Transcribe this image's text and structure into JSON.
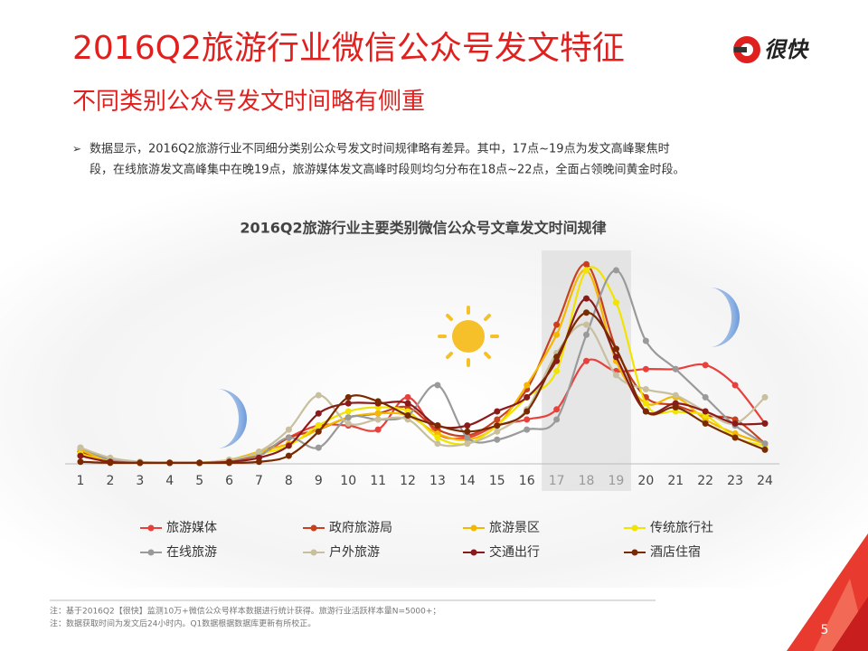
{
  "header": {
    "title": "2016Q2旅游行业微信公众号发文特征",
    "subtitle": "不同类别公众号发文时间略有侧重",
    "logo": "很快"
  },
  "summary": {
    "lines": [
      "数据显示，2016Q2旅游行业不同细分类别公众号发文时间规律略有差异。其中，17点~19点为发文高峰聚焦时",
      "段，在线旅游发文高峰集中在晚19点，旅游媒体发文高峰时段则均匀分布在18点~22点，全面占领晚间黄金时段。"
    ]
  },
  "chart_data": {
    "type": "line",
    "title": "2016Q2旅游行业主要类别微信公众号文章发文时间规律",
    "categories": [
      "1",
      "2",
      "3",
      "4",
      "5",
      "6",
      "7",
      "8",
      "9",
      "10",
      "11",
      "12",
      "13",
      "14",
      "15",
      "16",
      "17",
      "18",
      "19",
      "20",
      "21",
      "22",
      "23",
      "24"
    ],
    "ylim": [
      0,
      100
    ],
    "series": [
      {
        "name": "旅游媒体",
        "color": "#e8413c",
        "values": [
          4,
          1,
          0.5,
          0.5,
          0.5,
          1,
          4,
          13,
          19,
          19,
          17,
          33,
          15,
          13,
          19,
          22,
          27,
          51,
          46,
          47,
          47,
          49,
          39,
          20
        ]
      },
      {
        "name": "政府旅游局",
        "color": "#c8401e",
        "values": [
          6,
          1,
          0.5,
          0.5,
          0.5,
          1,
          5,
          13,
          17,
          23,
          25,
          28,
          17,
          14,
          22,
          37,
          69,
          99,
          57,
          33,
          29,
          24,
          22,
          10
        ]
      },
      {
        "name": "旅游景区",
        "color": "#f5b800",
        "values": [
          7,
          1,
          0.5,
          0.5,
          0.5,
          2,
          6,
          10,
          17,
          23,
          25,
          24,
          15,
          12,
          19,
          39,
          64,
          96,
          51,
          30,
          33,
          22,
          15,
          10
        ]
      },
      {
        "name": "传统旅行社",
        "color": "#f0e400",
        "values": [
          5,
          1,
          0.5,
          0.5,
          0.5,
          2,
          5,
          9,
          19,
          26,
          28,
          26,
          13,
          10,
          19,
          33,
          46,
          96,
          80,
          30,
          26,
          24,
          13,
          9
        ]
      },
      {
        "name": "在线旅游",
        "color": "#9a9a9a",
        "values": [
          8,
          2,
          0.5,
          0.5,
          0.5,
          1,
          4,
          13,
          8,
          23,
          22,
          24,
          39,
          13,
          12,
          17,
          22,
          64,
          96,
          61,
          47,
          33,
          19,
          10
        ]
      },
      {
        "name": "户外旅游",
        "color": "#c8bf9e",
        "values": [
          8,
          3,
          1,
          0.5,
          0.5,
          2,
          6,
          17,
          34,
          20,
          22,
          22,
          10,
          10,
          16,
          27,
          55,
          69,
          44,
          37,
          34,
          26,
          20,
          33
        ]
      },
      {
        "name": "交通出行",
        "color": "#8b1a1a",
        "values": [
          4,
          1,
          0.5,
          0.5,
          0.5,
          1,
          3,
          9,
          25,
          30,
          30,
          30,
          19,
          19,
          26,
          33,
          51,
          82,
          53,
          26,
          30,
          26,
          20,
          20
        ]
      },
      {
        "name": "酒店住宿",
        "color": "#7a2a00",
        "values": [
          1,
          0.5,
          0.5,
          0.5,
          0.5,
          0.5,
          1,
          4,
          16,
          33,
          31,
          24,
          19,
          16,
          19,
          26,
          53,
          75,
          57,
          26,
          28,
          20,
          13,
          7
        ]
      }
    ]
  },
  "notes": [
    "注：基于2016Q2【很快】监测10万+微信公众号样本数据进行统计获得。旅游行业活跃样本量N=5000+；",
    "注：数据获取时间为发文后24小时内。Q1数据根据数据库更新有所校正。"
  ],
  "page_number": "5"
}
